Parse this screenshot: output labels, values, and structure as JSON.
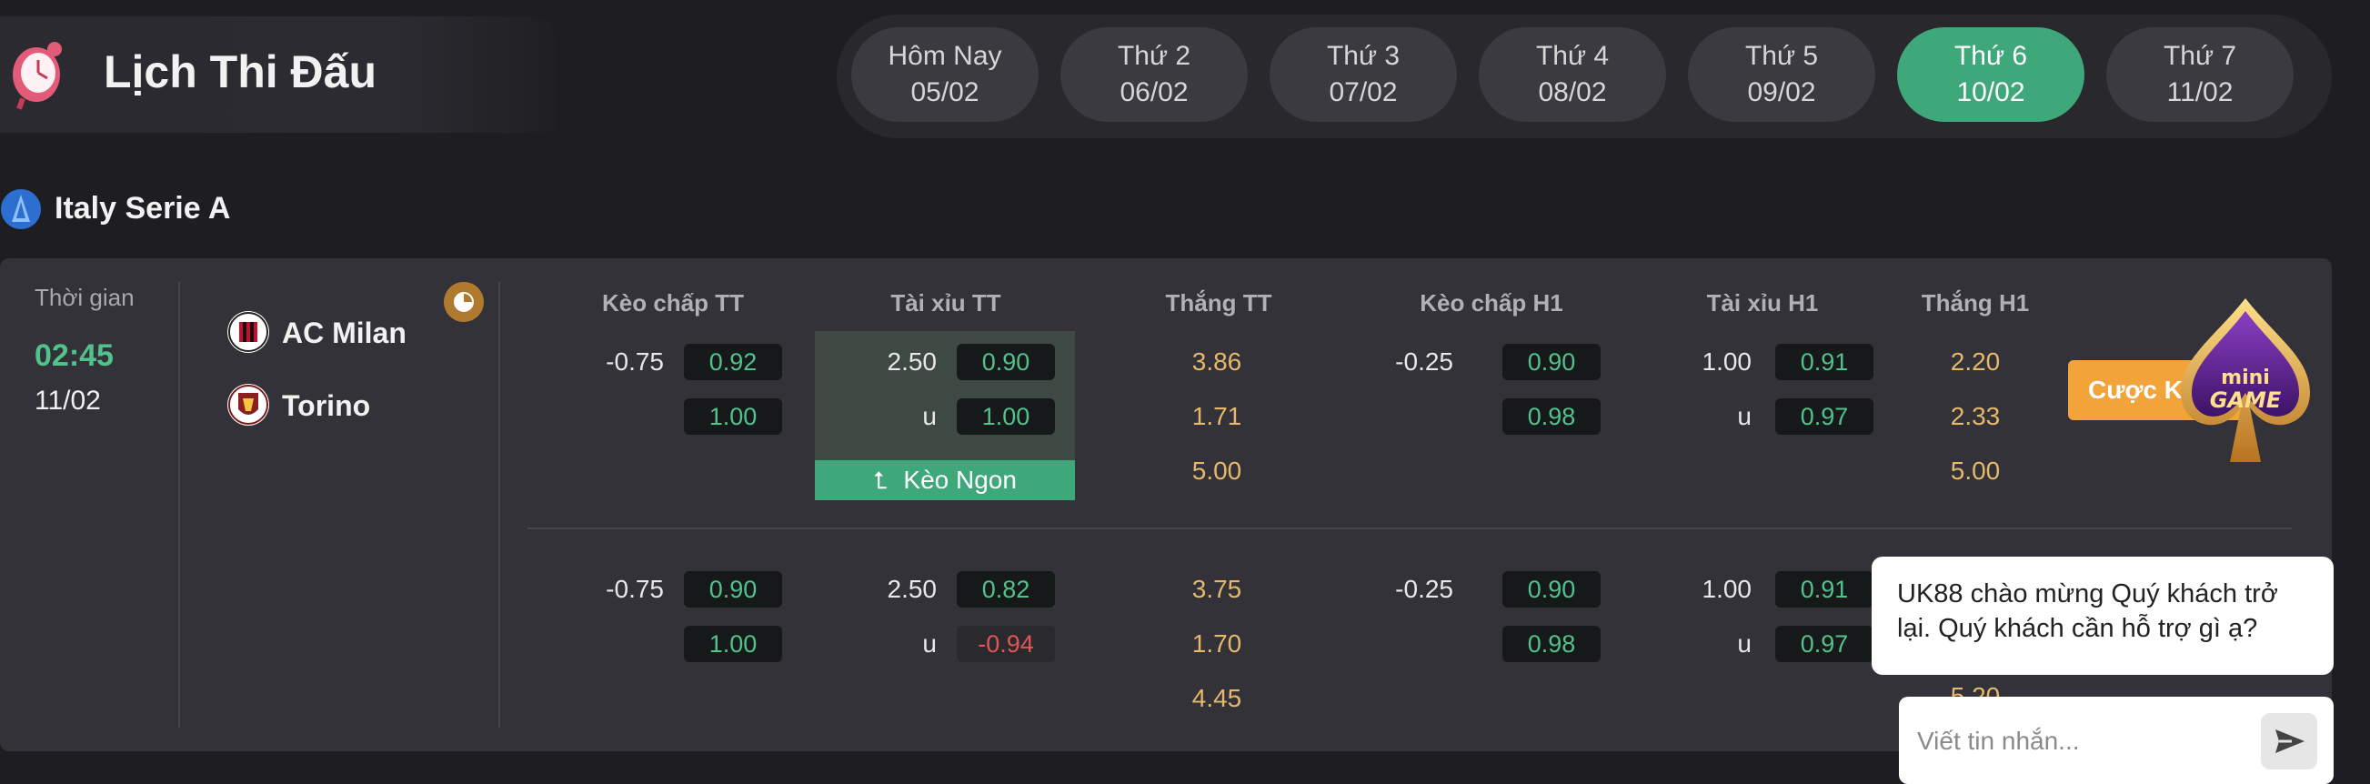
{
  "header": {
    "title": "Lịch Thi Đấu",
    "days": [
      {
        "name": "Hôm Nay",
        "date": "05/02"
      },
      {
        "name": "Thứ 2",
        "date": "06/02"
      },
      {
        "name": "Thứ 3",
        "date": "07/02"
      },
      {
        "name": "Thứ 4",
        "date": "08/02"
      },
      {
        "name": "Thứ 5",
        "date": "09/02"
      },
      {
        "name": "Thứ 6",
        "date": "10/02"
      },
      {
        "name": "Thứ 7",
        "date": "11/02"
      }
    ],
    "active_day": "Thứ 6"
  },
  "league": {
    "name": "Italy Serie A"
  },
  "match": {
    "time_label": "Thời gian",
    "time": "02:45",
    "date": "11/02",
    "home": "AC Milan",
    "away": "Torino",
    "columns": [
      "Kèo chấp TT",
      "Tài xỉu TT",
      "Thắng TT",
      "Kèo chấp H1",
      "Tài xỉu H1",
      "Thắng H1"
    ],
    "good_odds_label": "Kèo Ngon",
    "bet_label": "Cược K",
    "rows": [
      {
        "hcap": "-0.75",
        "hcap_odds": [
          "0.92",
          "1.00"
        ],
        "ou": "2.50",
        "ou_u": "u",
        "ou_odds": [
          "0.90",
          "1.00"
        ],
        "win": [
          "3.86",
          "1.71",
          "5.00"
        ],
        "h1_hcap": "-0.25",
        "h1_hcap_odds": [
          "0.90",
          "0.98"
        ],
        "h1_ou": "1.00",
        "h1_ou_u": "u",
        "h1_ou_odds": [
          "0.91",
          "0.97"
        ],
        "h1_win": [
          "2.20",
          "2.33",
          "5.00"
        ]
      },
      {
        "hcap": "-0.75",
        "hcap_odds": [
          "0.90",
          "1.00"
        ],
        "ou": "2.50",
        "ou_u": "u",
        "ou_odds": [
          "0.82",
          "-0.94"
        ],
        "win": [
          "3.75",
          "1.70",
          "4.45"
        ],
        "h1_hcap": "-0.25",
        "h1_hcap_odds": [
          "0.90",
          "0.98"
        ],
        "h1_ou": "1.00",
        "h1_ou_u": "u",
        "h1_ou_odds": [
          "0.91",
          "0.97"
        ],
        "h1_win": [
          "5.20"
        ]
      }
    ]
  },
  "mini_game": {
    "line1": "mini",
    "line2": "GAME"
  },
  "chat": {
    "message": "UK88 chào mừng Quý khách trở lại. Quý khách cần hỗ trợ gì ạ?",
    "placeholder": "Viết tin nhắn..."
  },
  "colors": {
    "accent_green": "#3fa87a",
    "odds_green": "#52c28c",
    "odds_red": "#e05555",
    "win_gold": "#e5b86a",
    "bet_orange": "#f2a43a"
  }
}
